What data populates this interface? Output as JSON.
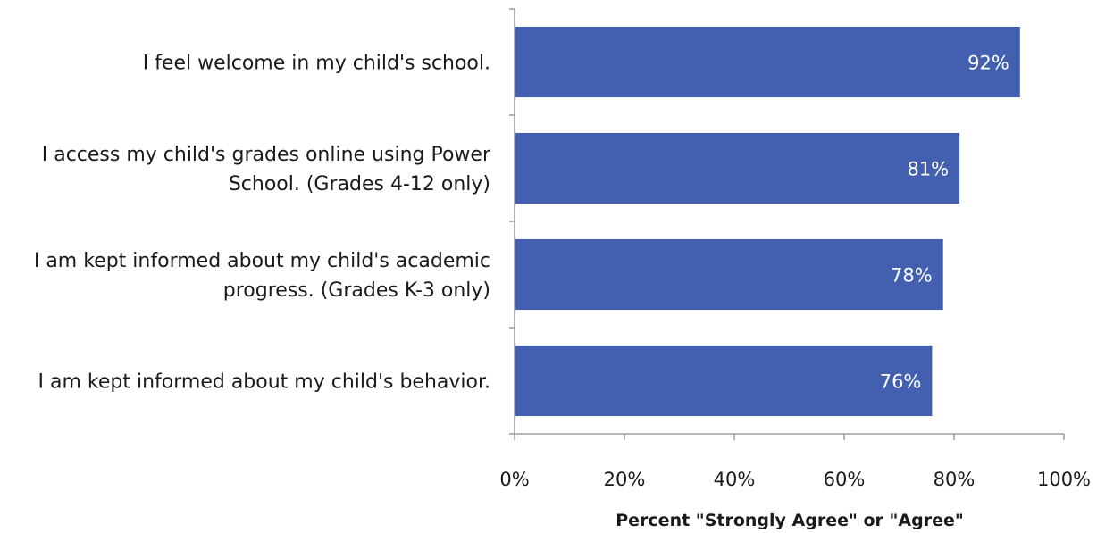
{
  "chart_data": {
    "type": "bar",
    "orientation": "horizontal",
    "categories": [
      [
        "I feel welcome in my child's school."
      ],
      [
        "I access my child's grades online using Power",
        "School. (Grades 4-12 only)"
      ],
      [
        "I am kept informed about my child's academic",
        "progress. (Grades K-3 only)"
      ],
      [
        "I am kept informed about my child's behavior."
      ]
    ],
    "values": [
      92,
      81,
      78,
      76
    ],
    "data_labels": [
      "92%",
      "81%",
      "78%",
      "76%"
    ],
    "xlim": [
      0,
      100
    ],
    "x_ticks": [
      0,
      20,
      40,
      60,
      80,
      100
    ],
    "x_tick_labels": [
      "0%",
      "20%",
      "40%",
      "60%",
      "80%",
      "100%"
    ],
    "xlabel": "Percent \"Strongly Agree\" or \"Agree\"",
    "ylabel": "",
    "title": "",
    "grid": false,
    "legend": "none",
    "bar_color": "#4360b0"
  }
}
